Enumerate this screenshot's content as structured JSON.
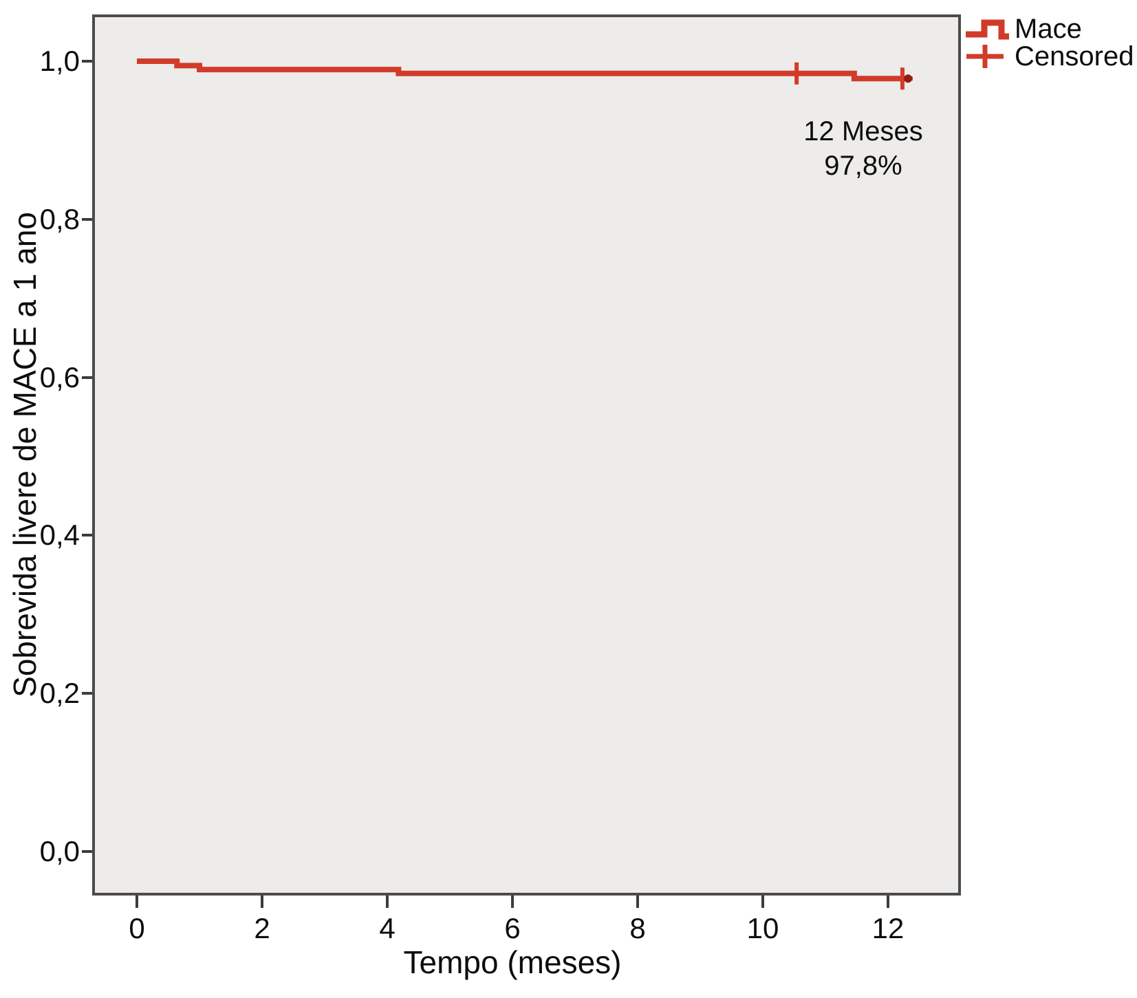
{
  "figure": {
    "background_color": "#ffffff",
    "plot_background_color": "#edecea",
    "plot_border_color": "#4b4b4b",
    "tick_color": "#3c3c3c",
    "text_color": "#0d0d0d",
    "accent_red": "#d23b2a",
    "end_marker_color": "#8f1f12"
  },
  "chart_data": {
    "type": "line",
    "subtype": "kaplan-meier-step",
    "title": "",
    "xlabel": "Tempo (meses)",
    "ylabel": "Sobrevida livere de MACE a 1 ano",
    "xlim": [
      -0.7,
      13.2
    ],
    "ylim": [
      -0.056,
      1.057
    ],
    "grid": false,
    "legend_position": "top-right-outside",
    "x_ticks": [
      {
        "v": 0,
        "label": "0"
      },
      {
        "v": 2,
        "label": "2"
      },
      {
        "v": 4,
        "label": "4"
      },
      {
        "v": 6,
        "label": "6"
      },
      {
        "v": 8,
        "label": "8"
      },
      {
        "v": 10,
        "label": "10"
      },
      {
        "v": 12,
        "label": "12"
      }
    ],
    "y_ticks": [
      {
        "v": 0.0,
        "label": "0,0"
      },
      {
        "v": 0.2,
        "label": "0,2"
      },
      {
        "v": 0.4,
        "label": "0,4"
      },
      {
        "v": 0.6,
        "label": "0,6"
      },
      {
        "v": 0.8,
        "label": "0,8"
      },
      {
        "v": 1.0,
        "label": "1,0"
      }
    ],
    "series": [
      {
        "name": "Mace",
        "color": "#d23b2a",
        "style": "step-after",
        "points": [
          [
            0.0,
            1.0
          ],
          [
            0.64,
            0.9945
          ],
          [
            1.0,
            0.9895
          ],
          [
            4.18,
            0.9845
          ],
          [
            11.46,
            0.978
          ],
          [
            12.32,
            0.978
          ]
        ]
      }
    ],
    "censored_marks": {
      "name": "Censored",
      "points": [
        [
          10.54,
          0.9845
        ],
        [
          12.23,
          0.978
        ]
      ]
    },
    "legend": [
      {
        "label": "Mace",
        "marker": "step-line"
      },
      {
        "label": "Censored",
        "marker": "plus"
      }
    ],
    "annotation": {
      "line1": "12 Meses",
      "line2": "97,8%",
      "meaning": "survival at 12 months = 97,8%"
    }
  }
}
